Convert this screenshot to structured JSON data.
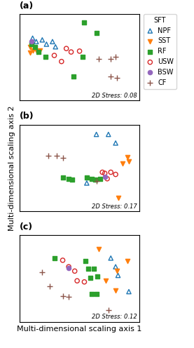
{
  "chart_data": [
    {
      "type": "scatter",
      "title": "(a)",
      "annotations": [
        {
          "text": "2D Stress: 0.08"
        }
      ],
      "xlim": [
        -1,
        1
      ],
      "ylim": [
        -0.4,
        0.6
      ],
      "tick_labels": false,
      "legend": "upper left",
      "legend_title": "SFT",
      "series": [
        {
          "name": "NPF",
          "marker": "triangle_up_open",
          "x": [
            -0.78,
            -0.72,
            -0.62,
            -0.55,
            -0.45,
            -0.4
          ],
          "values": [
            0.32,
            0.28,
            0.3,
            0.25,
            0.28,
            0.22
          ]
        },
        {
          "name": "SST",
          "marker": "triangle_down",
          "x": [
            -0.82,
            -0.78,
            -0.74,
            -0.7,
            -0.66,
            -0.82
          ],
          "values": [
            0.22,
            0.18,
            0.2,
            0.16,
            0.18,
            0.15
          ]
        },
        {
          "name": "RF",
          "marker": "square",
          "x": [
            -0.8,
            -0.74,
            -0.68,
            -0.56,
            0.08,
            0.28,
            0.05,
            -0.1
          ],
          "values": [
            0.25,
            0.22,
            0.16,
            0.1,
            0.5,
            0.38,
            0.1,
            -0.12
          ]
        },
        {
          "name": "USW",
          "marker": "circle_open",
          "x": [
            -0.42,
            -0.22,
            -0.14,
            0.0,
            -0.3
          ],
          "values": [
            0.12,
            0.2,
            0.16,
            0.17,
            0.05
          ]
        },
        {
          "name": "BSW",
          "marker": "circle",
          "x": [
            -0.8
          ],
          "values": [
            0.28
          ]
        },
        {
          "name": "CF",
          "marker": "plus",
          "x": [
            0.32,
            0.52,
            0.6,
            0.52,
            0.62
          ],
          "values": [
            0.08,
            0.08,
            0.1,
            -0.12,
            -0.14
          ]
        }
      ]
    },
    {
      "type": "scatter",
      "title": "(b)",
      "annotations": [
        {
          "text": "2D Stress: 0.17"
        }
      ],
      "ylabel": "Multi-dimensional scaling axis 2",
      "xlim": [
        -1,
        1
      ],
      "ylim": [
        -0.8,
        0.8
      ],
      "tick_labels": false,
      "series": [
        {
          "name": "NPF",
          "marker": "triangle_up_open",
          "x": [
            0.28,
            0.48,
            0.6,
            0.12
          ],
          "values": [
            0.62,
            0.62,
            0.46,
            -0.28
          ]
        },
        {
          "name": "SST",
          "marker": "triangle_down",
          "x": [
            0.8,
            0.72,
            0.82,
            0.65
          ],
          "values": [
            0.2,
            0.08,
            0.12,
            -0.55
          ]
        },
        {
          "name": "RF",
          "marker": "square",
          "x": [
            -0.28,
            -0.18,
            -0.12,
            0.12,
            0.2,
            0.26,
            0.34
          ],
          "values": [
            -0.18,
            -0.2,
            -0.22,
            -0.18,
            -0.2,
            -0.22,
            -0.2
          ]
        },
        {
          "name": "USW",
          "marker": "circle_open",
          "x": [
            0.42,
            0.52,
            0.6,
            0.46,
            0.38
          ],
          "values": [
            -0.1,
            -0.08,
            -0.12,
            -0.2,
            -0.08
          ]
        },
        {
          "name": "BSW",
          "marker": "circle",
          "x": [
            0.42
          ],
          "values": [
            -0.16
          ]
        },
        {
          "name": "CF",
          "marker": "plus",
          "x": [
            -0.52,
            -0.38,
            -0.28,
            0.28
          ],
          "values": [
            0.22,
            0.22,
            0.18,
            -0.24
          ]
        }
      ]
    },
    {
      "type": "scatter",
      "title": "(c)",
      "annotations": [
        {
          "text": "2D Stress: 0.12"
        }
      ],
      "xlabel": "Multi-dimensional scaling axis 1",
      "xlim": [
        -1,
        1
      ],
      "ylim": [
        -0.8,
        0.8
      ],
      "tick_labels": false,
      "series": [
        {
          "name": "NPF",
          "marker": "triangle_up_open",
          "x": [
            0.52,
            0.6,
            0.64,
            0.82
          ],
          "values": [
            0.38,
            0.22,
            0.06,
            -0.24
          ]
        },
        {
          "name": "SST",
          "marker": "triangle_down",
          "x": [
            0.32,
            0.8,
            0.44,
            0.6,
            0.62
          ],
          "values": [
            0.55,
            0.32,
            -0.04,
            -0.22,
            0.14
          ]
        },
        {
          "name": "RF",
          "marker": "square",
          "x": [
            -0.42,
            0.1,
            0.14,
            0.18,
            0.24,
            0.3,
            0.2,
            0.28
          ],
          "values": [
            0.38,
            0.32,
            0.18,
            0.02,
            0.18,
            0.04,
            -0.28,
            -0.28
          ]
        },
        {
          "name": "USW",
          "marker": "circle_open",
          "x": [
            -0.28,
            -0.18,
            -0.08,
            -0.04,
            0.08
          ],
          "values": [
            0.34,
            0.22,
            0.14,
            -0.04,
            -0.06
          ]
        },
        {
          "name": "BSW",
          "marker": "circle",
          "x": [
            -0.18
          ],
          "values": [
            0.2
          ]
        },
        {
          "name": "CF",
          "marker": "plus",
          "x": [
            -0.62,
            -0.5,
            -0.28,
            -0.18,
            0.48
          ],
          "values": [
            0.12,
            -0.14,
            -0.32,
            -0.34,
            -0.58
          ]
        }
      ]
    }
  ]
}
